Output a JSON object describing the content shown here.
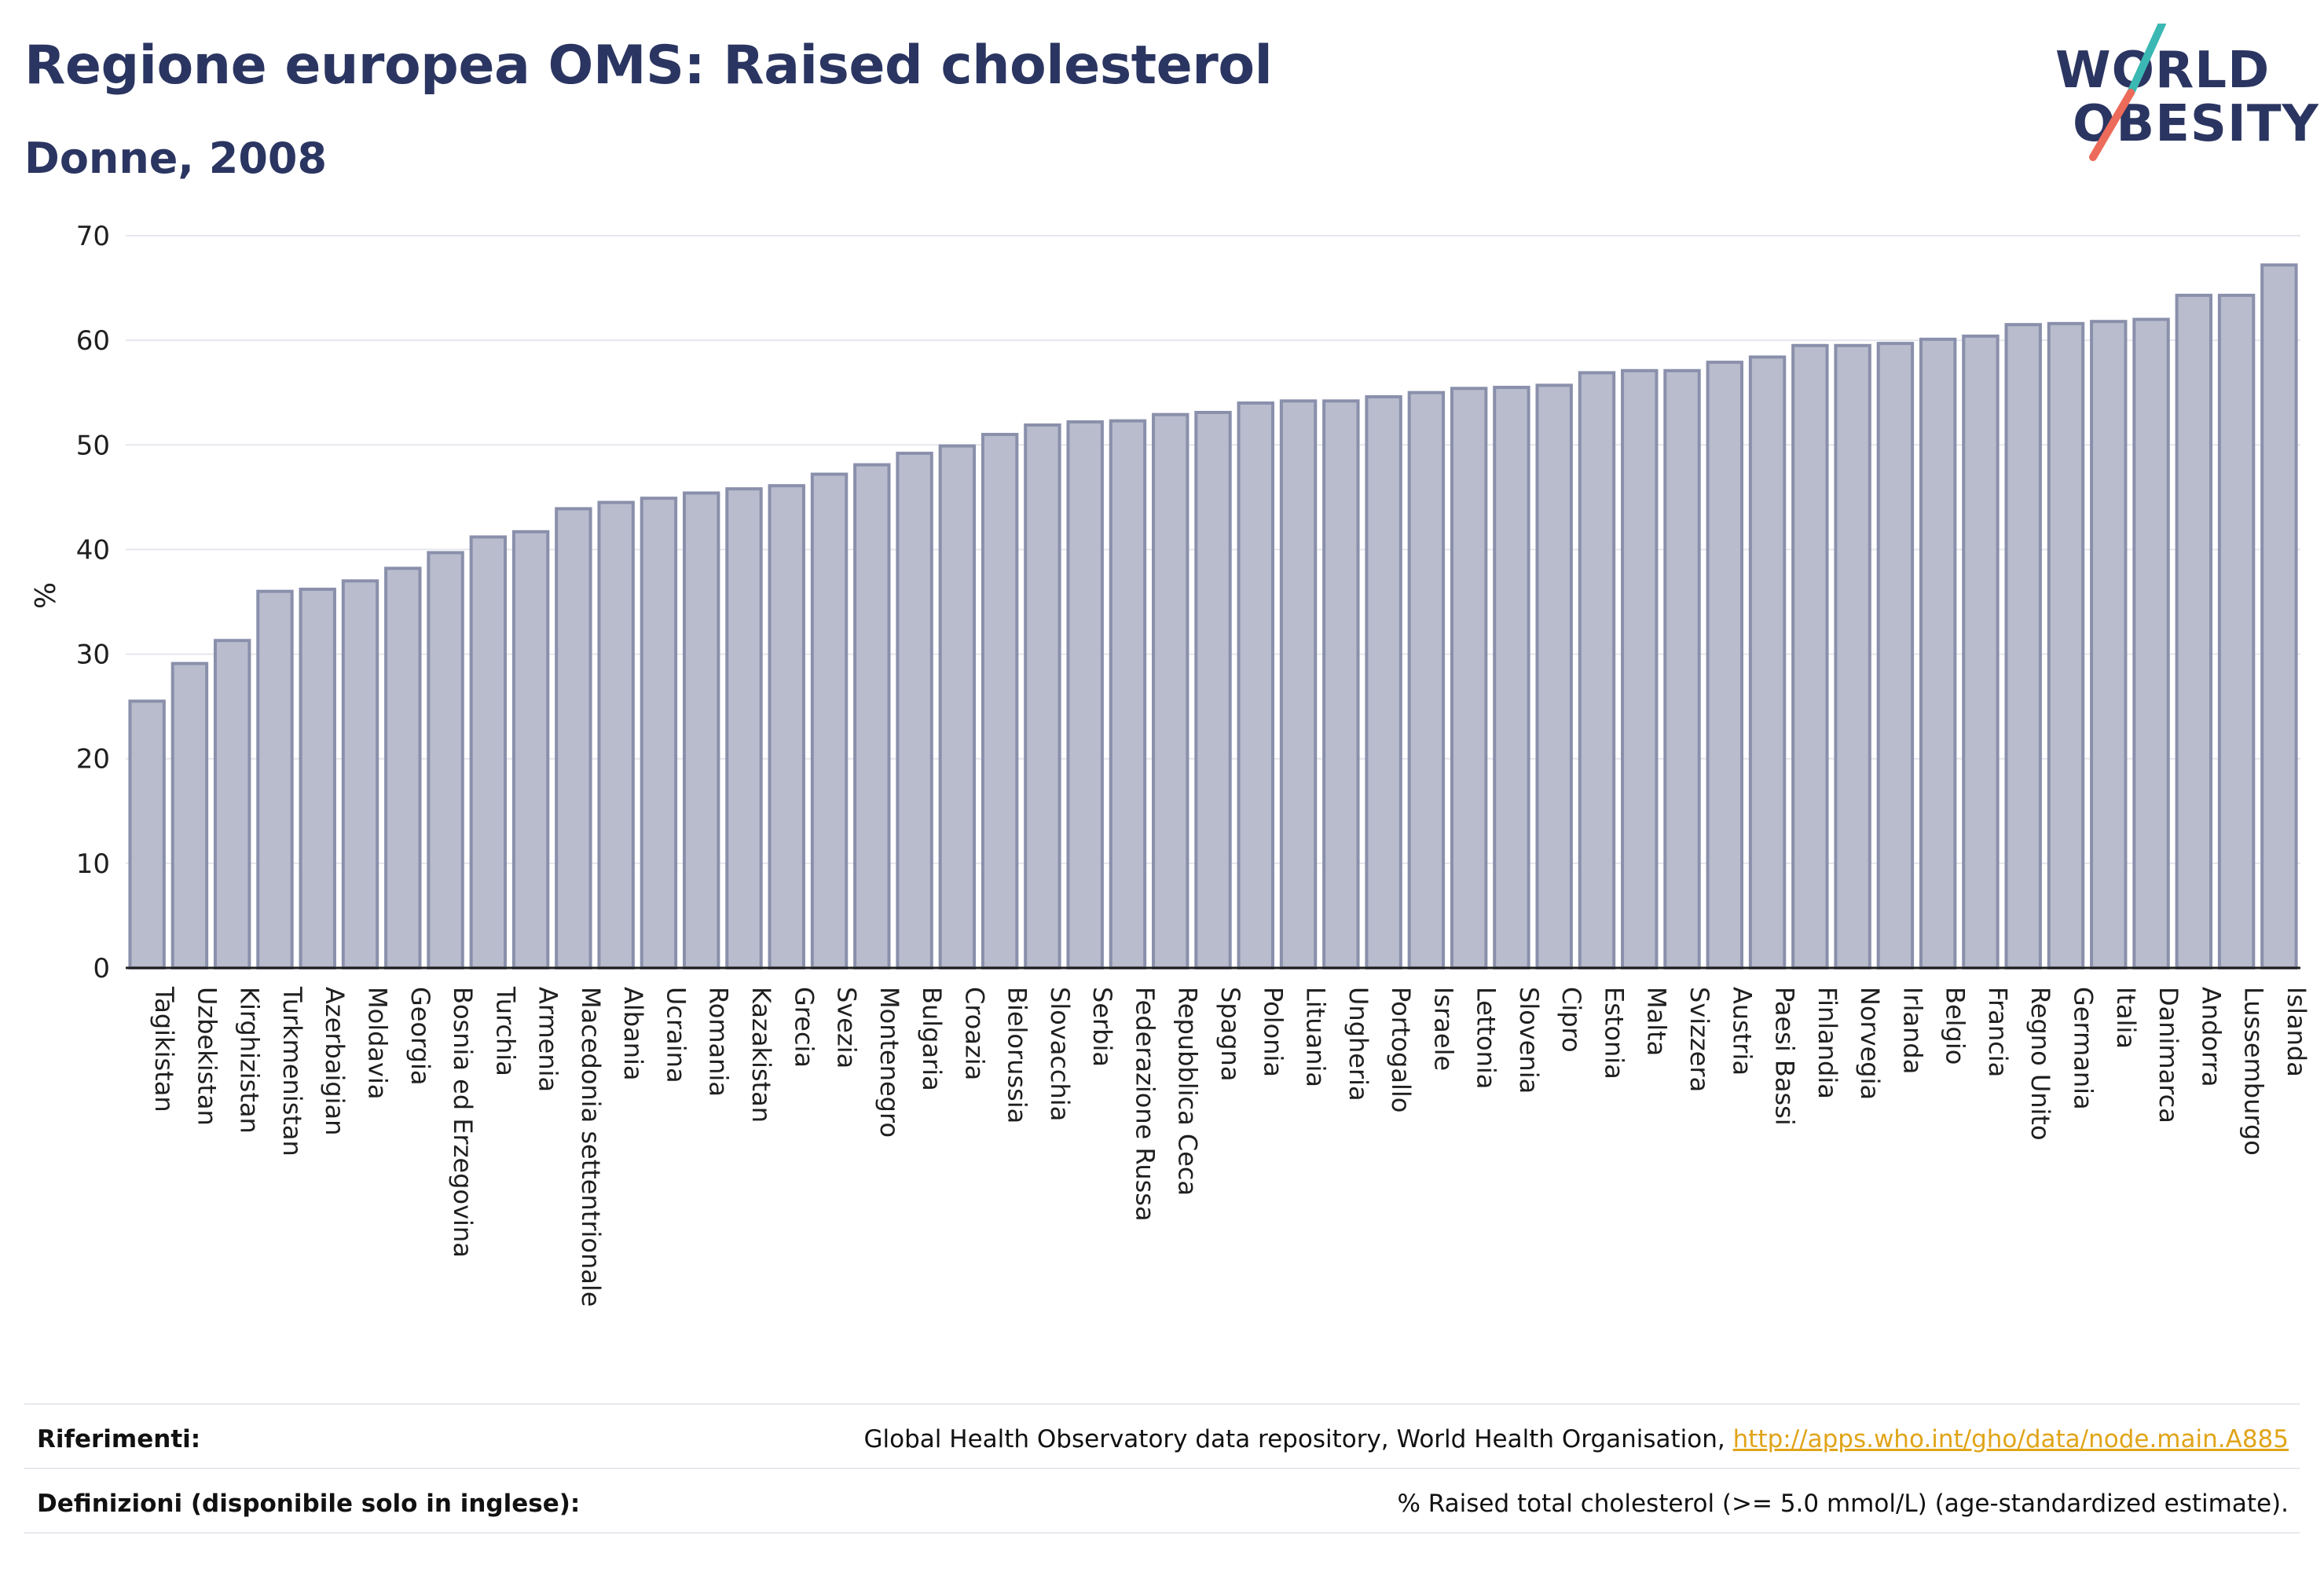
{
  "header": {
    "title": "Regione europea OMS: Raised cholesterol",
    "subtitle": "Donne, 2008"
  },
  "logo": {
    "line1": "WORLD",
    "line2": "OBESITY",
    "accent_teal": "#3bb8b3",
    "accent_coral": "#ec6b5a"
  },
  "colors": {
    "bar_fill": "#b8bccd",
    "bar_stroke": "#8a90ab",
    "grid": "#e6e7ee",
    "axis": "#1f1f1f",
    "title": "#2b3561"
  },
  "chart_data": {
    "type": "bar",
    "title": "Regione europea OMS: Raised cholesterol",
    "subtitle": "Donne, 2008",
    "ylabel": "%",
    "xlabel": "",
    "ylim": [
      0,
      70
    ],
    "yticks": [
      0,
      10,
      20,
      30,
      40,
      50,
      60,
      70
    ],
    "grid": true,
    "categories": [
      "Tagikistan",
      "Uzbekistan",
      "Kirghizistan",
      "Turkmenistan",
      "Azerbaigian",
      "Moldavia",
      "Georgia",
      "Bosnia ed Erzegovina",
      "Turchia",
      "Armenia",
      "Macedonia settentrionale",
      "Albania",
      "Ucraina",
      "Romania",
      "Kazakistan",
      "Grecia",
      "Svezia",
      "Montenegro",
      "Bulgaria",
      "Croazia",
      "Bielorussia",
      "Slovacchia",
      "Serbia",
      "Federazione Russa",
      "Repubblica Ceca",
      "Spagna",
      "Polonia",
      "Lituania",
      "Ungheria",
      "Portogallo",
      "Israele",
      "Lettonia",
      "Slovenia",
      "Cipro",
      "Estonia",
      "Malta",
      "Svizzera",
      "Austria",
      "Paesi Bassi",
      "Finlandia",
      "Norvegia",
      "Irlanda",
      "Belgio",
      "Francia",
      "Regno Unito",
      "Germania",
      "Italia",
      "Danimarca",
      "Andorra",
      "Lussemburgo",
      "Islanda"
    ],
    "values": [
      25.5,
      29.1,
      31.3,
      36.0,
      36.2,
      37.0,
      38.2,
      39.7,
      41.2,
      41.7,
      43.9,
      44.5,
      44.9,
      45.4,
      45.8,
      46.1,
      47.2,
      48.1,
      49.2,
      49.9,
      51.0,
      51.9,
      52.2,
      52.3,
      52.9,
      53.1,
      54.0,
      54.2,
      54.2,
      54.6,
      55.0,
      55.4,
      55.5,
      55.7,
      56.9,
      57.1,
      57.1,
      57.9,
      58.4,
      59.5,
      59.5,
      59.7,
      60.1,
      60.4,
      61.5,
      61.6,
      61.8,
      62.0,
      64.3,
      64.3,
      67.2
    ]
  },
  "footer": {
    "references_label": "Riferimenti:",
    "references_text": "Global Health Observatory data repository, World Health Organisation, ",
    "references_link": "http://apps.who.int/gho/data/node.main.A885",
    "definitions_label": "Definizioni (disponibile solo in inglese):",
    "definitions_text": "% Raised total cholesterol (>= 5.0 mmol/L) (age-standardized estimate)."
  }
}
